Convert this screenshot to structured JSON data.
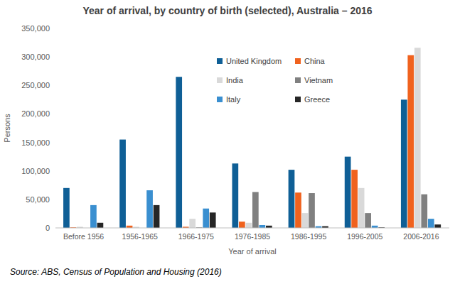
{
  "chart_data": {
    "type": "bar",
    "title": "Year of arrival, by country of birth (selected), Australia – 2016",
    "x_label": "Year of arrival",
    "y_label": "Persons",
    "source": "Source:  ABS, Census of Population and Housing (2016)",
    "categories": [
      "Before 1956",
      "1956-1965",
      "1966-1975",
      "1976-1985",
      "1986-1995",
      "1996-2005",
      "2006-2016"
    ],
    "series": [
      {
        "name": "United Kingdom",
        "color": "#0f5f96",
        "values": [
          70000,
          155000,
          265000,
          113000,
          102000,
          125000,
          225000
        ]
      },
      {
        "name": "China",
        "color": "#f0621e",
        "values": [
          1000,
          4000,
          2000,
          11000,
          62000,
          102000,
          303000
        ]
      },
      {
        "name": "India",
        "color": "#d9d9d9",
        "values": [
          2000,
          2000,
          16000,
          9000,
          26000,
          70000,
          316000
        ]
      },
      {
        "name": "Vietnam",
        "color": "#808080",
        "values": [
          0,
          0,
          1000,
          63000,
          61000,
          26000,
          59000
        ]
      },
      {
        "name": "Italy",
        "color": "#3a8fd0",
        "values": [
          40000,
          66000,
          34000,
          5000,
          3000,
          4000,
          16000
        ]
      },
      {
        "name": "Greece",
        "color": "#262626",
        "values": [
          9000,
          40000,
          27000,
          4000,
          3000,
          1000,
          6000
        ]
      }
    ],
    "ylim": [
      0,
      350000
    ],
    "yticks": [
      0,
      {
        "value": 50000,
        "label": "50,000"
      },
      {
        "value": 100000,
        "label": "100,000"
      },
      {
        "value": 150000,
        "label": "150,000"
      },
      {
        "value": 200000,
        "label": "200,000"
      },
      {
        "value": 250000,
        "label": "250,000"
      },
      {
        "value": 300000,
        "label": "300,000"
      },
      {
        "value": 350000,
        "label": "350,000"
      }
    ],
    "grid": false,
    "legend": "top"
  }
}
